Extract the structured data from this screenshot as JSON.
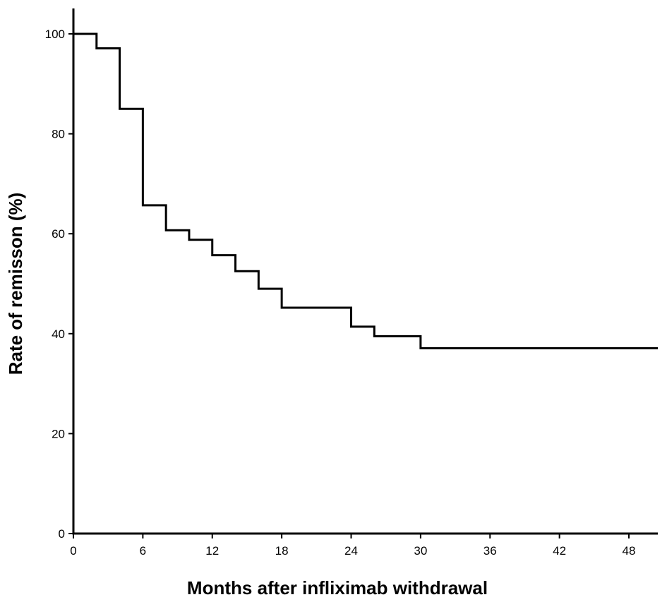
{
  "chart_data": {
    "type": "line",
    "title": "",
    "xlabel": "Months after infliximab withdrawal",
    "ylabel": "Rate of remisson (%)",
    "xlim": [
      0,
      50.5
    ],
    "ylim": [
      0,
      100
    ],
    "x_ticks": [
      0,
      6,
      12,
      18,
      24,
      30,
      36,
      42,
      48
    ],
    "y_ticks": [
      0,
      20,
      40,
      60,
      80,
      100
    ],
    "x_tick_labels": [
      "0",
      "6",
      "12",
      "18",
      "24",
      "30",
      "36",
      "42",
      "48"
    ],
    "y_tick_labels": [
      "0",
      "20",
      "40",
      "60",
      "80",
      "100"
    ],
    "grid": false,
    "line_style": "step",
    "series": [
      {
        "color": "#000000",
        "x": [
          0,
          2,
          4,
          6,
          8,
          10,
          12,
          14,
          16,
          18,
          24,
          26,
          30,
          50.5
        ],
        "y": [
          100,
          97.1,
          85.0,
          65.7,
          60.7,
          58.8,
          55.7,
          52.5,
          49.0,
          45.2,
          41.4,
          39.5,
          37.1,
          37.1
        ]
      }
    ]
  }
}
